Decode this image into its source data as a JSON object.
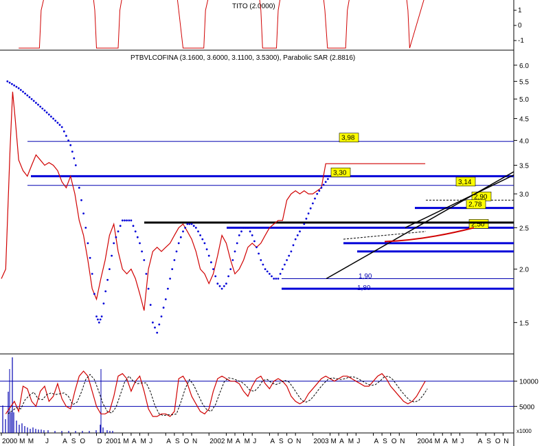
{
  "chart_data": [
    {
      "panel": "indicator-top",
      "type": "line",
      "title": "TITO (2.0000)",
      "y_ticks": [
        "1",
        "0",
        "-1"
      ],
      "ylim": [
        -1.5,
        1.5
      ],
      "color": "#d00000",
      "x_month_index": [
        2.0,
        4.4,
        4.6,
        5.0,
        10.6,
        10.8,
        11.0,
        13.5,
        13.7,
        14.0,
        20.3,
        20.5,
        21.0,
        23.4,
        23.6,
        24.0,
        29.8,
        30.0,
        30.2,
        31.8,
        32.0,
        32.3,
        37.2,
        37.4,
        37.7,
        39.8,
        40.0,
        40.3,
        46.8,
        47.0,
        47.2,
        49.0
      ],
      "values": [
        -1.5,
        -1.5,
        1.0,
        2.0,
        2.0,
        1.0,
        -1.5,
        -1.5,
        1.0,
        2.0,
        2.0,
        1.0,
        -1.5,
        -1.5,
        1.0,
        2.0,
        2.0,
        1.0,
        -1.5,
        -1.5,
        1.0,
        2.0,
        2.0,
        1.0,
        -1.5,
        -1.5,
        1.0,
        2.0,
        2.0,
        1.0,
        -1.5,
        2.0
      ]
    },
    {
      "panel": "price",
      "type": "line",
      "title": "PTBVLCOFINA (3.1600, 3.6000, 3.1100, 3.5300), Parabolic SAR (2.8816)",
      "y_scale": "log",
      "y_ticks": [
        "6.0",
        "5.5",
        "5.0",
        "4.5",
        "4.0",
        "3.5",
        "3.0",
        "2.5",
        "2.0",
        "1.5"
      ],
      "ylim": [
        1.3,
        6.2
      ],
      "x_tick_labels": [
        "2000",
        "M",
        "M",
        "J",
        "A",
        "S",
        "O",
        "D",
        "2001",
        "M",
        "A",
        "M",
        "J",
        "A",
        "S",
        "O",
        "N",
        "2002",
        "M",
        "A",
        "M",
        "J",
        "A",
        "S",
        "O",
        "N",
        "2003",
        "M",
        "A",
        "M",
        "J",
        "A",
        "S",
        "O",
        "N",
        "2004",
        "M",
        "A",
        "M",
        "J",
        "A",
        "S",
        "O",
        "N"
      ],
      "x_tick_month_index": [
        0,
        2,
        3,
        5,
        7,
        8,
        9,
        11,
        12,
        14,
        15,
        16,
        17,
        19,
        20,
        21,
        22,
        24,
        26,
        27,
        28,
        29,
        31,
        32,
        33,
        34,
        36,
        38,
        39,
        40,
        41,
        43,
        44,
        45,
        46,
        48,
        50,
        51,
        52,
        53,
        55,
        56,
        57,
        58
      ],
      "series": [
        {
          "key": "close",
          "color": "#d00000",
          "x_month_index": [
            0,
            0.5,
            1.0,
            1.3,
            1.6,
            2.0,
            2.5,
            3.0,
            3.5,
            4.0,
            4.5,
            5.0,
            5.5,
            6.0,
            6.5,
            7.0,
            7.5,
            8.0,
            8.5,
            9.0,
            9.5,
            10.0,
            10.5,
            11.0,
            11.5,
            12.0,
            12.5,
            13.0,
            13.5,
            14.0,
            14.5,
            15.0,
            15.5,
            16.0,
            16.5,
            17.0,
            17.5,
            18.0,
            18.5,
            19.0,
            19.5,
            20.0,
            20.5,
            21.0,
            21.5,
            22.0,
            22.5,
            23.0,
            23.5,
            24.0,
            24.5,
            25.0,
            25.5,
            26.0,
            26.5,
            27.0,
            27.5,
            28.0,
            28.5,
            29.0,
            29.5,
            30.0,
            30.5,
            31.0,
            31.5,
            32.0,
            32.5,
            33.0,
            33.5,
            34.0,
            34.5,
            35.0,
            35.5,
            36.0,
            36.5,
            37.0,
            37.5,
            38.0,
            38.5,
            39.0,
            39.5,
            40.0,
            40.5,
            41.0,
            41.5,
            42.0,
            42.5,
            43.0,
            43.5,
            44.0,
            44.5,
            45.0,
            45.5,
            46.0,
            46.5,
            47.0,
            47.5,
            48.0,
            48.5,
            49.0,
            49.5
          ],
          "values": [
            1.9,
            2.0,
            3.8,
            5.2,
            4.5,
            3.6,
            3.4,
            3.3,
            3.5,
            3.7,
            3.6,
            3.5,
            3.55,
            3.5,
            3.4,
            3.2,
            3.1,
            3.3,
            3.0,
            2.6,
            2.4,
            2.1,
            1.8,
            1.7,
            1.9,
            2.1,
            2.4,
            2.55,
            2.2,
            2.0,
            1.95,
            2.0,
            1.9,
            1.75,
            1.6,
            2.0,
            2.2,
            2.25,
            2.2,
            2.25,
            2.3,
            2.4,
            2.5,
            2.55,
            2.45,
            2.35,
            2.2,
            2.0,
            1.95,
            1.85,
            1.95,
            2.15,
            2.4,
            2.3,
            2.1,
            1.95,
            2.0,
            2.1,
            2.25,
            2.3,
            2.25,
            2.3,
            2.4,
            2.5,
            2.55,
            2.6,
            2.6,
            2.9,
            3.0,
            3.05,
            3.0,
            3.05,
            3.0,
            3.0,
            3.05,
            3.1,
            3.53,
            3.53,
            3.53,
            3.53,
            3.53,
            3.53,
            3.53,
            3.53,
            3.53,
            3.53,
            3.53,
            3.53,
            3.53,
            3.53,
            3.53,
            3.53,
            3.53,
            3.53,
            3.53,
            3.53,
            3.53,
            3.53,
            3.53,
            3.53
          ]
        },
        {
          "key": "sar",
          "color": "#0000d8",
          "x_month_index": [
            0.7,
            2,
            3,
            4,
            5,
            6,
            7,
            8,
            8.6,
            9,
            9.5,
            10,
            10.5,
            11,
            11.3,
            11.6,
            12.5,
            13,
            14,
            15,
            15.5,
            16,
            16.5,
            17,
            17.5,
            18,
            18.5,
            19,
            19.5,
            20,
            20.5,
            21,
            21.5,
            22,
            22.5,
            23,
            23.5,
            24,
            24.5,
            25,
            25.5,
            26,
            26.5,
            27,
            27.5,
            28,
            28.5,
            29,
            29.5,
            30,
            30.5,
            31,
            31.5,
            32,
            32.5,
            33,
            33.5,
            34,
            34.5,
            35,
            35.5,
            36,
            36.5,
            37,
            37.5,
            38
          ],
          "values": [
            5.5,
            5.3,
            5.1,
            4.9,
            4.7,
            4.5,
            4.3,
            3.9,
            3.5,
            3.1,
            2.7,
            2.3,
            1.95,
            1.55,
            1.5,
            1.55,
            2.0,
            2.3,
            2.6,
            2.6,
            2.45,
            2.3,
            2.1,
            1.8,
            1.5,
            1.42,
            1.55,
            1.7,
            1.9,
            2.1,
            2.3,
            2.45,
            2.55,
            2.55,
            2.5,
            2.4,
            2.3,
            2.15,
            2.0,
            1.85,
            1.8,
            1.85,
            2.0,
            2.2,
            2.4,
            2.5,
            2.5,
            2.4,
            2.25,
            2.1,
            2.0,
            1.95,
            1.9,
            1.9,
            2.0,
            2.1,
            2.2,
            2.35,
            2.45,
            2.55,
            2.7,
            2.85,
            3.0,
            3.1,
            3.2,
            3.3
          ]
        }
      ],
      "levels": [
        {
          "label": "3,98",
          "value": 3.98
        },
        {
          "label": "3,30",
          "value": 3.3
        },
        {
          "label": "3,14",
          "value": 3.14
        },
        {
          "label": "2,90",
          "value": 2.9
        },
        {
          "label": "2,78",
          "value": 2.78
        },
        {
          "label": "2,50",
          "value": 2.5
        },
        {
          "label": "1,90",
          "value": 1.9
        },
        {
          "label": "1,80",
          "value": 1.8
        }
      ]
    },
    {
      "panel": "oscillator-bottom",
      "type": "line",
      "y_ticks": [
        "10000",
        "5000"
      ],
      "y_unit_label": "x1000",
      "ylim": [
        0,
        15000
      ],
      "x_tick_labels": [
        "2000",
        "M",
        "M",
        "J",
        "A",
        "S",
        "O",
        "D",
        "2001",
        "M",
        "A",
        "M",
        "J",
        "A",
        "S",
        "O",
        "N",
        "2002",
        "M",
        "A",
        "M",
        "J",
        "A",
        "S",
        "O",
        "N",
        "2003",
        "M",
        "A",
        "M",
        "J",
        "A",
        "S",
        "O",
        "N",
        "2004",
        "M",
        "A",
        "M",
        "J",
        "A",
        "S",
        "O",
        "N"
      ],
      "x_month_index": [
        0.5,
        1.5,
        2.0,
        2.5,
        3.0,
        3.5,
        4.0,
        4.5,
        5.0,
        5.5,
        6.0,
        6.5,
        7.0,
        7.5,
        8.0,
        8.5,
        9.0,
        9.5,
        10.0,
        10.5,
        11.0,
        11.5,
        12.0,
        12.5,
        13.0,
        13.5,
        14.0,
        14.5,
        15.0,
        15.5,
        16.0,
        16.5,
        17.0,
        17.5,
        18.0,
        18.5,
        19.0,
        19.5,
        20.0,
        20.5,
        21.0,
        21.5,
        22.0,
        22.5,
        23.0,
        23.5,
        24.0,
        24.5,
        25.0,
        25.5,
        26.0,
        26.5,
        27.0,
        27.5,
        28.0,
        28.5,
        29.0,
        29.5,
        30.0,
        30.5,
        31.0,
        31.5,
        32.0,
        32.5,
        33.0,
        33.5,
        34.0,
        34.5,
        35.0,
        35.5,
        36.0,
        36.5,
        37.0,
        37.5,
        38.0,
        38.5,
        39.0,
        39.5,
        40.0,
        40.5,
        41.0,
        41.5,
        42.0,
        42.5,
        43.0,
        43.5,
        44.0,
        44.5,
        45.0,
        45.5,
        46.0,
        46.5,
        47.0,
        47.5,
        48.0,
        48.5,
        49.0
      ],
      "values": [
        3500,
        6000,
        4000,
        9000,
        8500,
        6000,
        5000,
        8000,
        9000,
        6000,
        7000,
        9500,
        6500,
        5000,
        4500,
        8000,
        11000,
        12000,
        11000,
        8000,
        5000,
        3500,
        3500,
        4000,
        7000,
        11000,
        11500,
        10500,
        8000,
        10000,
        11000,
        8000,
        4500,
        3000,
        3000,
        3500,
        3500,
        3000,
        4000,
        10500,
        11000,
        9500,
        7000,
        5500,
        4000,
        3500,
        4500,
        8000,
        10500,
        11000,
        10500,
        10000,
        10000,
        9500,
        8000,
        7000,
        9000,
        10500,
        11000,
        9500,
        8500,
        10000,
        10500,
        10000,
        9000,
        7000,
        6000,
        5500,
        6000,
        7500,
        8500,
        9500,
        10500,
        11000,
        10500,
        10000,
        10500,
        11000,
        11000,
        10500,
        10000,
        9500,
        9000,
        9000,
        10000,
        11000,
        11500,
        10500,
        9000,
        8000,
        7000,
        6000,
        5500,
        6000,
        7000,
        8500,
        10000
      ],
      "series": [
        {
          "key": "fast",
          "color": "#d00000"
        },
        {
          "key": "slow",
          "color": "#000000"
        }
      ]
    }
  ]
}
